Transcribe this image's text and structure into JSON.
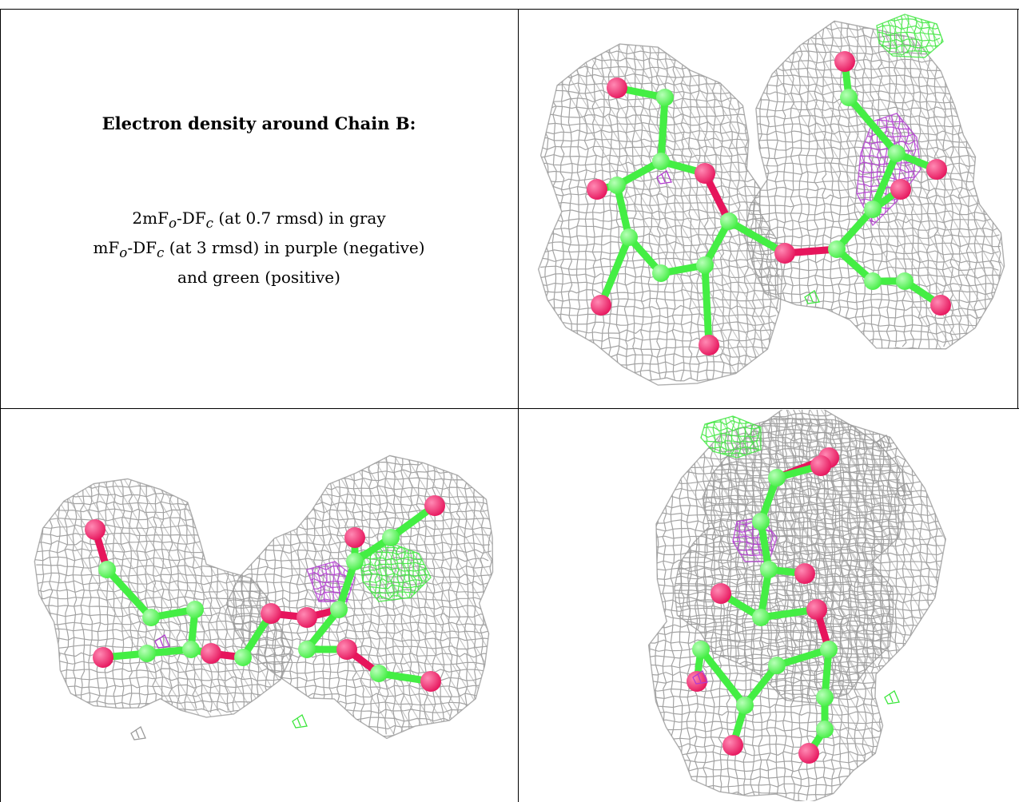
{
  "caption": {
    "title": "Electron density around Chain B:",
    "line1": {
      "a": "2mF",
      "sub1": "o",
      "b": "-DF",
      "sub2": "c",
      "c": " (at 0.7 rmsd) in gray"
    },
    "line2": {
      "a": "mF",
      "sub1": "o",
      "b": "-DF",
      "sub2": "c",
      "c": " (at 3 rmsd) in purple (negative)"
    },
    "line3": "and green (positive)"
  },
  "colors": {
    "mesh_2fofc": "#9a9a9a",
    "mesh_positive": "#3de63d",
    "mesh_negative": "#b23ad0",
    "carbon": "#44ee44",
    "oxygen": "#e6155c"
  },
  "panels": [
    {
      "id": "view-top-right",
      "description_icon": "molecule-density-view"
    },
    {
      "id": "view-bottom-left",
      "description_icon": "molecule-density-view"
    },
    {
      "id": "view-bottom-right",
      "description_icon": "molecule-density-view"
    }
  ]
}
